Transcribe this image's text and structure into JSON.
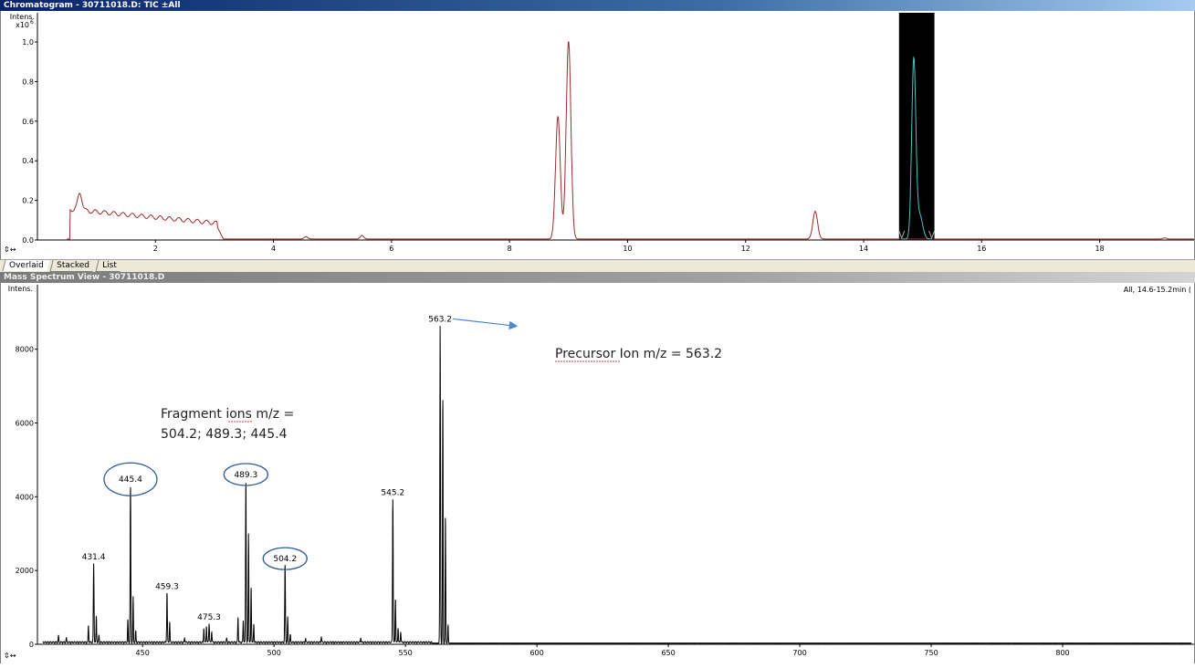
{
  "chromatogram": {
    "title": "Chromatogram - 30711018.D: TIC ±All",
    "y_axis_label": "Intens.",
    "y_scale_label": "x10",
    "y_scale_exponent": "6",
    "trace_color": "#9b2c2c",
    "selection_trace_color": "#4fc3c3",
    "x_ticks": [
      2,
      4,
      6,
      8,
      10,
      12,
      14,
      16,
      18
    ],
    "y_ticks": [
      0.0,
      0.2,
      0.4,
      0.6,
      0.8,
      1.0
    ],
    "x_range": [
      0.0,
      19.6
    ],
    "y_range": [
      0.0,
      1.12
    ],
    "selected_range": [
      14.6,
      15.2
    ],
    "peaks": [
      {
        "rt": 8.82,
        "intensity": 0.62
      },
      {
        "rt": 9.0,
        "intensity": 1.0
      },
      {
        "rt": 13.18,
        "intensity": 0.14
      },
      {
        "rt": 14.85,
        "intensity": 0.9
      }
    ]
  },
  "tabs": [
    {
      "label": "Overlaid",
      "active": true
    },
    {
      "label": "Stacked",
      "active": false
    },
    {
      "label": "List",
      "active": false
    }
  ],
  "mass_spectrum": {
    "title": "Mass Spectrum View - 30711018.D",
    "y_axis_label": "Intens.",
    "header_right": "All, 14.6-15.2min (",
    "x_ticks": [
      450,
      500,
      550,
      600,
      650,
      700,
      750,
      800
    ],
    "y_ticks": [
      0,
      2000,
      4000,
      6000,
      8000
    ],
    "x_range": [
      410,
      850
    ],
    "y_range": [
      0,
      9600
    ],
    "labeled_peaks": [
      {
        "mz": 431.4,
        "label": "431.4",
        "intensity": 2150,
        "circled": false
      },
      {
        "mz": 445.4,
        "label": "445.4",
        "intensity": 4250,
        "circled": true
      },
      {
        "mz": 459.3,
        "label": "459.3",
        "intensity": 1350,
        "circled": false
      },
      {
        "mz": 475.3,
        "label": "475.3",
        "intensity": 520,
        "circled": false
      },
      {
        "mz": 489.3,
        "label": "489.3",
        "intensity": 4380,
        "circled": true
      },
      {
        "mz": 504.2,
        "label": "504.2",
        "intensity": 2100,
        "circled": true
      },
      {
        "mz": 545.2,
        "label": "545.2",
        "intensity": 3900,
        "circled": false
      },
      {
        "mz": 563.2,
        "label": "563.2",
        "intensity": 8600,
        "circled": false
      }
    ],
    "annotations": {
      "precursor": "Precursor Ion m/z = 563.2",
      "fragment_line1": "Fragment ions m/z =",
      "fragment_line2": "504.2; 489.3; 445.4"
    },
    "annotation_circle_color": "#2e5c99",
    "arrow_color": "#4a8ad4"
  }
}
